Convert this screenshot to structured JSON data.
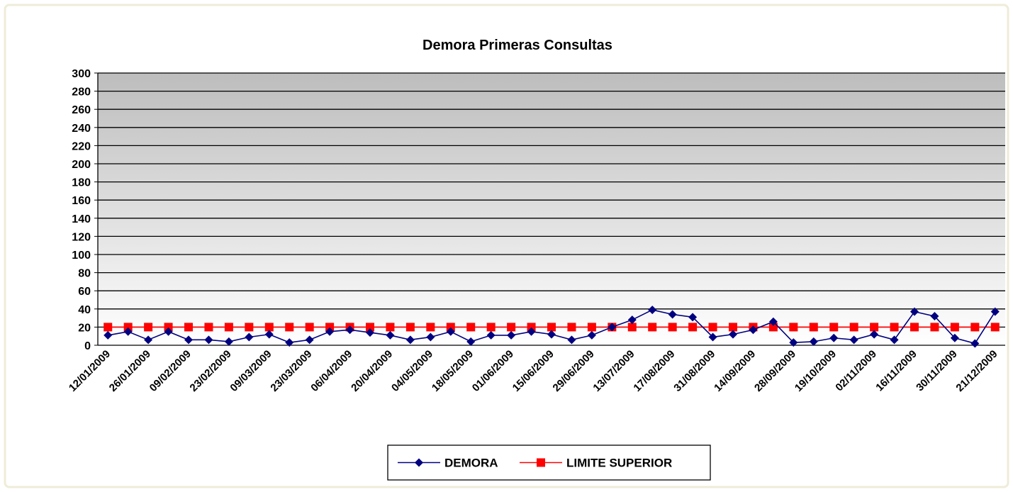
{
  "chart_data": {
    "type": "line",
    "title": "Demora Primeras Consultas",
    "categories": [
      "12/01/2009",
      null,
      "26/01/2009",
      null,
      "09/02/2009",
      null,
      "23/02/2009",
      null,
      "09/03/2009",
      null,
      "23/03/2009",
      null,
      "06/04/2009",
      null,
      "20/04/2009",
      null,
      "04/05/2009",
      null,
      "18/05/2009",
      null,
      "01/06/2009",
      null,
      "15/06/2009",
      null,
      "29/06/2009",
      null,
      "13/07/2009",
      null,
      "17/08/2009",
      null,
      "31/08/2009",
      null,
      "14/09/2009",
      null,
      "28/09/2009",
      null,
      "19/10/2009",
      null,
      "02/11/2009",
      null,
      "16/11/2009",
      null,
      "30/11/2009",
      null,
      "21/12/2009"
    ],
    "series": [
      {
        "name": "DEMORA",
        "color": "#000080",
        "marker": "diamond",
        "values": [
          11,
          15,
          6,
          15,
          6,
          6,
          4,
          9,
          12,
          3,
          6,
          15,
          17,
          14,
          11,
          6,
          9,
          15,
          4,
          11,
          11,
          15,
          12,
          6,
          11,
          20,
          28,
          39,
          34,
          31,
          9,
          12,
          17,
          26,
          3,
          4,
          8,
          6,
          12,
          6,
          37,
          32,
          8,
          2,
          37
        ]
      },
      {
        "name": "LIMITE SUPERIOR",
        "color": "#ff0000",
        "marker": "square",
        "values": [
          20,
          20,
          20,
          20,
          20,
          20,
          20,
          20,
          20,
          20,
          20,
          20,
          20,
          20,
          20,
          20,
          20,
          20,
          20,
          20,
          20,
          20,
          20,
          20,
          20,
          20,
          20,
          20,
          20,
          20,
          20,
          20,
          20,
          20,
          20,
          20,
          20,
          20,
          20,
          20,
          20,
          20,
          20,
          20,
          20
        ]
      }
    ],
    "ylim": [
      0,
      300
    ],
    "yticks": [
      0,
      20,
      40,
      60,
      80,
      100,
      120,
      140,
      160,
      180,
      200,
      220,
      240,
      260,
      280,
      300
    ],
    "grid": true,
    "legend": "bottom"
  }
}
